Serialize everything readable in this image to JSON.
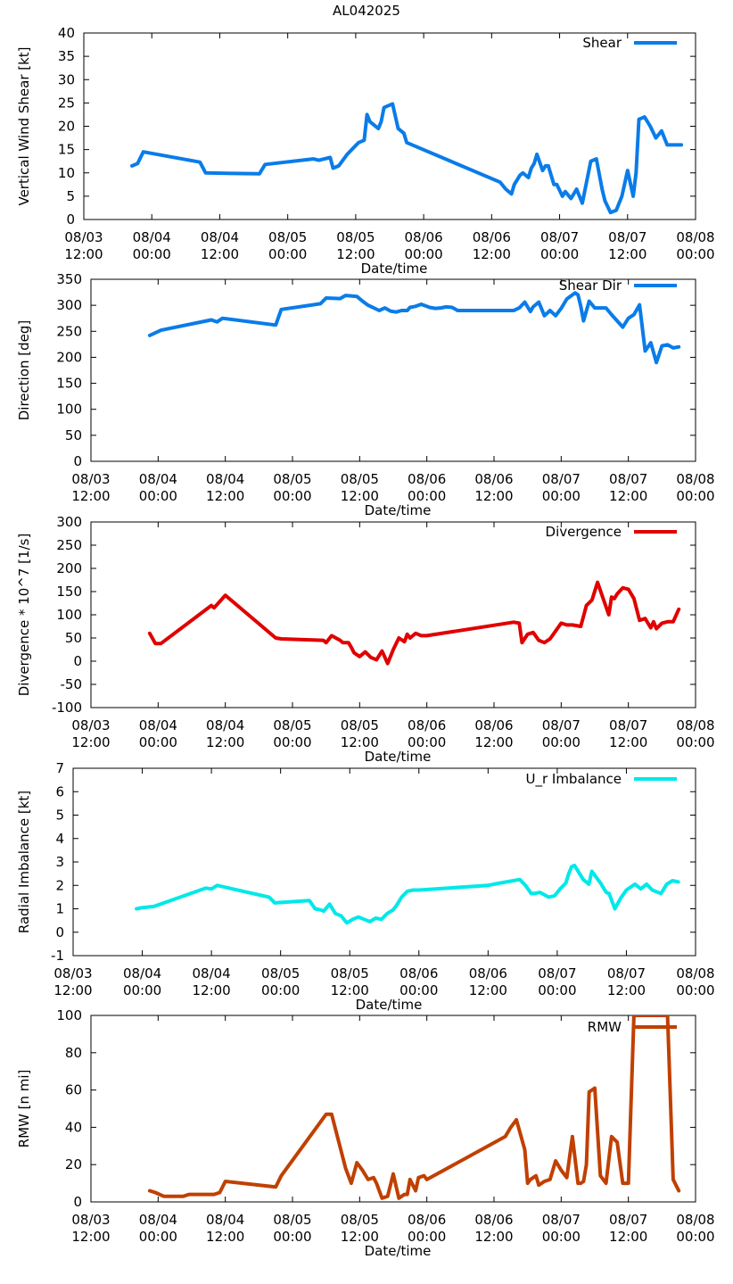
{
  "figure_title": "AL042025",
  "chart_data": [
    {
      "type": "line",
      "ylabel": "Vertical Wind Shear [kt]",
      "xlabel": "Date/time",
      "ylim": [
        0,
        40
      ],
      "ytick_values": [
        0,
        5,
        10,
        15,
        20,
        25,
        30,
        35,
        40
      ],
      "xtick_labels": [
        [
          "08/03",
          "12:00"
        ],
        [
          "08/04",
          "00:00"
        ],
        [
          "08/04",
          "12:00"
        ],
        [
          "08/05",
          "00:00"
        ],
        [
          "08/05",
          "12:00"
        ],
        [
          "08/06",
          "00:00"
        ],
        [
          "08/06",
          "12:00"
        ],
        [
          "08/07",
          "00:00"
        ],
        [
          "08/07",
          "12:00"
        ],
        [
          "08/08",
          "00:00"
        ]
      ],
      "x_units": "hours since 08/03 12:00",
      "xlim": [
        0,
        108
      ],
      "series": [
        {
          "name": "Shear",
          "color": "#0a7ce8",
          "x": [
            8.5,
            9.5,
            10.5,
            20.5,
            21.5,
            31.0,
            32.0,
            40.5,
            41.5,
            43.5,
            44.0,
            45.0,
            46.5,
            48.5,
            49.5,
            50.0,
            50.5,
            52.0,
            52.5,
            53.0,
            54.5,
            55.5,
            56.0,
            56.5,
            57.0,
            73.5,
            74.5,
            75.5,
            76.0,
            77.0,
            77.5,
            78.5,
            79.0,
            79.5,
            80.0,
            81.0,
            81.5,
            82.0,
            83.0,
            83.5,
            84.5,
            85.0,
            86.0,
            87.0,
            88.0,
            89.5,
            90.5,
            91.5,
            92.0,
            93.0,
            94.0,
            95.0,
            96.0,
            97.0,
            97.5,
            98.0,
            99.0,
            100.0,
            101.0,
            102.0,
            103.0,
            104.0,
            105.5
          ],
          "y": [
            11.5,
            12.0,
            14.5,
            12.3,
            10.0,
            9.8,
            11.8,
            13.0,
            12.7,
            13.3,
            11.0,
            11.5,
            14.0,
            16.5,
            17.0,
            22.5,
            21.0,
            19.5,
            21.0,
            24.0,
            24.8,
            19.5,
            19.0,
            18.5,
            16.5,
            8.0,
            6.5,
            5.5,
            7.5,
            9.5,
            10.0,
            9.0,
            11.0,
            12.0,
            14.0,
            10.5,
            11.5,
            11.5,
            7.5,
            7.5,
            5.0,
            6.0,
            4.5,
            6.5,
            3.5,
            12.5,
            13.0,
            6.5,
            4.0,
            1.5,
            2.0,
            5.0,
            10.5,
            5.0,
            10.0,
            21.5,
            22.0,
            20.0,
            17.5,
            19.0,
            16.0,
            16.0,
            16.0
          ]
        }
      ]
    },
    {
      "type": "line",
      "ylabel": "Direction [deg]",
      "xlabel": "Date/time",
      "ylim": [
        0,
        350
      ],
      "ytick_values": [
        0,
        50,
        100,
        150,
        200,
        250,
        300,
        350
      ],
      "xtick_labels": [
        [
          "08/03",
          "12:00"
        ],
        [
          "08/04",
          "00:00"
        ],
        [
          "08/04",
          "12:00"
        ],
        [
          "08/05",
          "00:00"
        ],
        [
          "08/05",
          "12:00"
        ],
        [
          "08/06",
          "00:00"
        ],
        [
          "08/06",
          "12:00"
        ],
        [
          "08/07",
          "00:00"
        ],
        [
          "08/07",
          "12:00"
        ],
        [
          "08/08",
          "00:00"
        ]
      ],
      "x_units": "hours since 08/03 12:00",
      "xlim": [
        0,
        108
      ],
      "series": [
        {
          "name": "Shear Dir",
          "color": "#0a7ce8",
          "x": [
            10.5,
            12.5,
            21.5,
            22.5,
            23.5,
            33.0,
            34.0,
            41.0,
            42.0,
            44.5,
            45.5,
            47.5,
            48.5,
            49.5,
            51.5,
            52.5,
            53.5,
            54.5,
            55.5,
            56.5,
            57.0,
            58.0,
            59.0,
            60.5,
            61.5,
            62.5,
            63.5,
            64.5,
            65.0,
            65.5,
            75.5,
            76.5,
            77.5,
            78.5,
            79.0,
            80.0,
            81.0,
            82.0,
            83.0,
            84.0,
            85.0,
            86.5,
            87.0,
            87.5,
            88.0,
            89.0,
            90.0,
            92.0,
            93.0,
            94.0,
            95.0,
            96.0,
            97.0,
            98.0,
            99.0,
            100.0,
            101.0,
            102.0,
            103.0,
            104.0,
            105.0
          ],
          "y": [
            242,
            252,
            272,
            268,
            275,
            262,
            292,
            303,
            314,
            313,
            319,
            317,
            308,
            300,
            290,
            295,
            289,
            287,
            290,
            290,
            296,
            298,
            302,
            296,
            294,
            295,
            297,
            296,
            293,
            290,
            290,
            295,
            306,
            288,
            297,
            306,
            280,
            290,
            280,
            294,
            312,
            324,
            320,
            298,
            270,
            308,
            295,
            295,
            282,
            270,
            258,
            275,
            282,
            301,
            212,
            228,
            190,
            222,
            224,
            218,
            220
          ]
        }
      ]
    },
    {
      "type": "line",
      "ylabel": "Divergence * 10^7 [1/s]",
      "xlabel": "Date/time",
      "ylim": [
        -100,
        300
      ],
      "ytick_values": [
        -100,
        -50,
        0,
        50,
        100,
        150,
        200,
        250,
        300
      ],
      "xtick_labels": [
        [
          "08/03",
          "12:00"
        ],
        [
          "08/04",
          "00:00"
        ],
        [
          "08/04",
          "12:00"
        ],
        [
          "08/05",
          "00:00"
        ],
        [
          "08/05",
          "12:00"
        ],
        [
          "08/06",
          "00:00"
        ],
        [
          "08/06",
          "12:00"
        ],
        [
          "08/07",
          "00:00"
        ],
        [
          "08/07",
          "12:00"
        ],
        [
          "08/08",
          "00:00"
        ]
      ],
      "x_units": "hours since 08/03 12:00",
      "xlim": [
        0,
        108
      ],
      "series": [
        {
          "name": "Divergence",
          "color": "#e00000",
          "x": [
            10.5,
            11.5,
            12.5,
            21.5,
            22.0,
            24.0,
            33.0,
            34.0,
            41.5,
            42.0,
            43.0,
            44.5,
            45.0,
            46.0,
            46.5,
            47.0,
            48.0,
            49.0,
            50.0,
            51.0,
            52.0,
            53.0,
            54.0,
            55.0,
            56.0,
            56.5,
            57.0,
            58.0,
            59.0,
            60.0,
            75.5,
            76.5,
            77.0,
            78.0,
            79.0,
            80.0,
            81.0,
            82.0,
            83.0,
            84.0,
            85.0,
            86.0,
            87.5,
            88.5,
            89.5,
            90.5,
            92.5,
            93.0,
            93.5,
            94.0,
            95.0,
            96.0,
            97.0,
            98.0,
            99.0,
            100.0,
            100.5,
            101.0,
            102.0,
            103.0,
            104.0,
            105.0
          ],
          "y": [
            60,
            38,
            38,
            120,
            115,
            142,
            50,
            48,
            45,
            40,
            55,
            45,
            40,
            40,
            30,
            18,
            10,
            20,
            8,
            3,
            22,
            -5,
            25,
            50,
            42,
            58,
            50,
            60,
            55,
            55,
            84,
            82,
            40,
            58,
            62,
            45,
            40,
            48,
            65,
            82,
            78,
            78,
            75,
            120,
            132,
            170,
            100,
            138,
            135,
            145,
            158,
            155,
            135,
            88,
            92,
            72,
            85,
            70,
            82,
            85,
            85,
            112
          ]
        }
      ]
    },
    {
      "type": "line",
      "ylabel": "Radial Imbalance [kt]",
      "xlabel": "Date/time",
      "ylim": [
        -1,
        7
      ],
      "ytick_values": [
        -1,
        0,
        1,
        2,
        3,
        4,
        5,
        6,
        7
      ],
      "xtick_labels": [
        [
          "08/03",
          "12:00"
        ],
        [
          "08/04",
          "00:00"
        ],
        [
          "08/04",
          "12:00"
        ],
        [
          "08/05",
          "00:00"
        ],
        [
          "08/05",
          "12:00"
        ],
        [
          "08/06",
          "00:00"
        ],
        [
          "08/06",
          "12:00"
        ],
        [
          "08/07",
          "00:00"
        ],
        [
          "08/07",
          "12:00"
        ],
        [
          "08/08",
          "00:00"
        ]
      ],
      "x_units": "hours since 08/03 12:00",
      "xlim": [
        0,
        108
      ],
      "series": [
        {
          "name": "U_r Imbalance",
          "color": "#00e8e8",
          "x": [
            11.0,
            12.0,
            14.0,
            23.0,
            24.0,
            25.0,
            34.0,
            35.0,
            41.0,
            42.0,
            43.0,
            43.5,
            44.5,
            45.5,
            46.5,
            47.5,
            48.5,
            49.5,
            50.5,
            51.5,
            52.5,
            53.5,
            54.5,
            55.5,
            56.0,
            57.0,
            58.0,
            59.0,
            60.0,
            72.0,
            73.0,
            77.5,
            78.5,
            79.5,
            80.0,
            81.0,
            82.5,
            83.5,
            84.5,
            85.5,
            86.0,
            86.5,
            87.0,
            88.5,
            89.5,
            90.0,
            91.5,
            92.5,
            93.0,
            94.0,
            95.0,
            96.0,
            97.5,
            98.5,
            99.5,
            100.5,
            101.0,
            102.0,
            103.0,
            104.0,
            105.0
          ],
          "y": [
            1.0,
            1.05,
            1.1,
            1.88,
            1.85,
            2.0,
            1.5,
            1.25,
            1.35,
            1.0,
            0.95,
            0.9,
            1.2,
            0.8,
            0.7,
            0.4,
            0.55,
            0.65,
            0.55,
            0.45,
            0.6,
            0.55,
            0.8,
            0.95,
            1.1,
            1.5,
            1.75,
            1.8,
            1.8,
            2.0,
            2.05,
            2.25,
            2.0,
            1.65,
            1.65,
            1.7,
            1.5,
            1.55,
            1.85,
            2.1,
            2.5,
            2.8,
            2.85,
            2.25,
            2.05,
            2.6,
            2.1,
            1.7,
            1.65,
            1.0,
            1.45,
            1.8,
            2.05,
            1.85,
            2.05,
            1.8,
            1.75,
            1.65,
            2.05,
            2.2,
            2.15
          ]
        }
      ]
    },
    {
      "type": "line",
      "ylabel": "RMW [n mi]",
      "xlabel": "Date/time",
      "ylim": [
        0,
        100
      ],
      "ytick_values": [
        0,
        20,
        40,
        60,
        80,
        100
      ],
      "xtick_labels": [
        [
          "08/03",
          "12:00"
        ],
        [
          "08/04",
          "00:00"
        ],
        [
          "08/04",
          "12:00"
        ],
        [
          "08/05",
          "00:00"
        ],
        [
          "08/05",
          "12:00"
        ],
        [
          "08/06",
          "00:00"
        ],
        [
          "08/06",
          "12:00"
        ],
        [
          "08/07",
          "00:00"
        ],
        [
          "08/07",
          "12:00"
        ],
        [
          "08/08",
          "00:00"
        ]
      ],
      "x_units": "hours since 08/03 12:00",
      "xlim": [
        0,
        108
      ],
      "series": [
        {
          "name": "RMW",
          "color": "#c04000",
          "x": [
            10.5,
            11.5,
            13.0,
            16.5,
            17.5,
            22.0,
            23.0,
            24.0,
            33.0,
            34.0,
            42.0,
            43.0,
            45.5,
            46.5,
            47.5,
            48.5,
            49.5,
            50.5,
            51.0,
            52.0,
            53.0,
            54.0,
            55.0,
            56.0,
            56.5,
            57.0,
            58.0,
            58.5,
            59.5,
            60.0,
            74.0,
            75.0,
            76.0,
            77.5,
            78.0,
            78.5,
            79.5,
            80.0,
            80.5,
            81.0,
            82.0,
            83.0,
            84.0,
            85.0,
            86.0,
            87.0,
            87.5,
            88.0,
            88.5,
            89.0,
            89.5,
            90.0,
            91.0,
            92.0,
            93.0,
            94.0,
            95.0,
            96.0,
            97.0,
            98.0,
            99.0,
            100.0,
            101.0,
            102.0,
            103.0,
            104.0,
            105.0
          ],
          "y": [
            6,
            5,
            3,
            3,
            4,
            4,
            5,
            11,
            8,
            14,
            47,
            47,
            18,
            10,
            21,
            17,
            12,
            13,
            10,
            2,
            3,
            15,
            2,
            4,
            4,
            12,
            6,
            13,
            14,
            12,
            35,
            40,
            44,
            28,
            10,
            12,
            14,
            9,
            10,
            11,
            12,
            22,
            17,
            13,
            35,
            10,
            10,
            11,
            20,
            59,
            60,
            61,
            14,
            10,
            35,
            32,
            10,
            10,
            100,
            100,
            100,
            100,
            100,
            100,
            100,
            12,
            6
          ]
        }
      ]
    }
  ]
}
